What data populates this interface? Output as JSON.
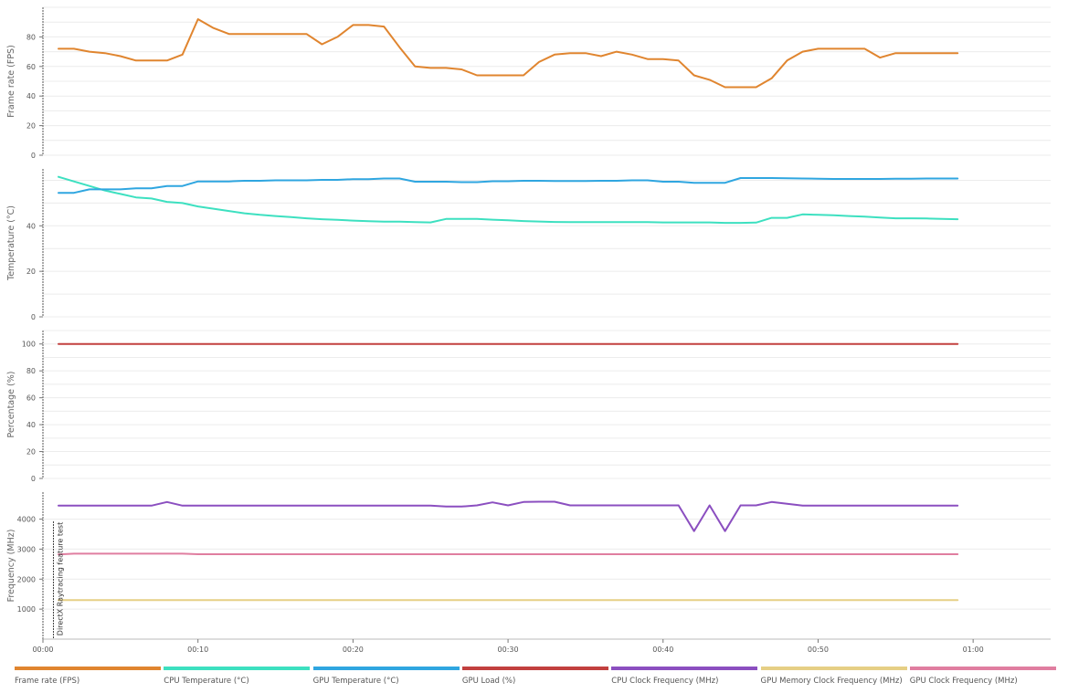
{
  "chart_data": {
    "type": "line",
    "x_axis": {
      "ticks": [
        "00:00",
        "00:10",
        "00:20",
        "00:30",
        "00:40",
        "00:50",
        "01:00"
      ],
      "range_seconds": [
        0,
        65
      ]
    },
    "annotations": [
      {
        "label": "DirectX Raytracing feature test",
        "x_seconds": 0.5
      }
    ],
    "panels": [
      {
        "ylabel": "Frame rate (FPS)",
        "ylim": [
          0,
          100
        ],
        "ticks": [
          0,
          20,
          40,
          60,
          80
        ],
        "grid_step": 10,
        "series": [
          {
            "name": "Frame rate (FPS)",
            "color": "#e0852f",
            "t": [
              1,
              2,
              3,
              4,
              5,
              6,
              7,
              8,
              9,
              10,
              11,
              12,
              13,
              14,
              15,
              16,
              17,
              18,
              19,
              20,
              21,
              22,
              23,
              24,
              25,
              26,
              27,
              28,
              29,
              30,
              31,
              32,
              33,
              34,
              35,
              36,
              37,
              38,
              39,
              40,
              41,
              42,
              43,
              44,
              45,
              46,
              47,
              48,
              49,
              50,
              51,
              52,
              53,
              54,
              55,
              56,
              57,
              58,
              59
            ],
            "values": [
              72,
              72,
              70,
              69,
              67,
              64,
              64,
              64,
              68,
              92,
              86,
              82,
              82,
              82,
              82,
              82,
              82,
              75,
              80,
              88,
              88,
              87,
              73,
              60,
              59,
              59,
              58,
              54,
              54,
              54,
              54,
              63,
              68,
              69,
              69,
              67,
              70,
              68,
              65,
              65,
              64,
              54,
              51,
              46,
              46,
              46,
              52,
              64,
              70,
              72,
              72,
              72,
              72,
              66,
              69,
              69,
              69,
              69,
              69
            ]
          }
        ]
      },
      {
        "ylabel": "Temperature (°C)",
        "ylim": [
          0,
          65
        ],
        "ticks": [
          0,
          20,
          40
        ],
        "grid_step": 10,
        "series": [
          {
            "name": "CPU Temperature (°C)",
            "color": "#3de0c0",
            "t": [
              1,
              2,
              3,
              4,
              5,
              6,
              7,
              8,
              9,
              10,
              11,
              12,
              13,
              14,
              15,
              16,
              17,
              18,
              19,
              20,
              21,
              22,
              23,
              24,
              25,
              26,
              27,
              28,
              29,
              30,
              31,
              32,
              33,
              34,
              35,
              36,
              37,
              38,
              39,
              40,
              41,
              42,
              43,
              44,
              45,
              46,
              47,
              48,
              49,
              50,
              51,
              52,
              53,
              54,
              55,
              56,
              57,
              58,
              59
            ],
            "values": [
              61.5,
              59.5,
              57.5,
              55.5,
              54,
              52.5,
              52,
              50.5,
              50,
              48.5,
              47.5,
              46.5,
              45.5,
              44.8,
              44.3,
              43.8,
              43.3,
              42.9,
              42.6,
              42.3,
              42,
              41.8,
              41.8,
              41.6,
              41.5,
              43,
              43,
              43,
              42.7,
              42.4,
              42.1,
              41.9,
              41.7,
              41.6,
              41.6,
              41.6,
              41.6,
              41.6,
              41.6,
              41.5,
              41.5,
              41.5,
              41.5,
              41.3,
              41.3,
              41.4,
              43.5,
              43.5,
              45,
              44.8,
              44.6,
              44.3,
              44,
              43.6,
              43.3,
              43.3,
              43.2,
              43,
              42.9
            ]
          },
          {
            "name": "GPU Temperature (°C)",
            "color": "#2fa6e0",
            "t": [
              1,
              2,
              3,
              4,
              5,
              6,
              7,
              8,
              9,
              10,
              11,
              12,
              13,
              14,
              15,
              16,
              17,
              18,
              19,
              20,
              21,
              22,
              23,
              24,
              25,
              26,
              27,
              28,
              29,
              30,
              31,
              32,
              33,
              34,
              35,
              36,
              37,
              38,
              39,
              40,
              41,
              42,
              43,
              44,
              45,
              46,
              47,
              48,
              49,
              50,
              51,
              52,
              53,
              54,
              55,
              56,
              57,
              58,
              59
            ],
            "values": [
              54.5,
              54.5,
              56,
              56,
              56,
              56.5,
              56.5,
              57.5,
              57.5,
              59.5,
              59.5,
              59.5,
              59.8,
              59.8,
              60,
              60,
              60,
              60.2,
              60.2,
              60.5,
              60.5,
              60.8,
              60.8,
              59.4,
              59.4,
              59.4,
              59.2,
              59.2,
              59.6,
              59.6,
              59.8,
              59.8,
              59.7,
              59.7,
              59.7,
              59.8,
              59.8,
              60,
              60,
              59.4,
              59.4,
              58.9,
              58.9,
              58.9,
              61,
              61,
              61,
              60.9,
              60.8,
              60.7,
              60.6,
              60.6,
              60.6,
              60.6,
              60.7,
              60.7,
              60.8,
              60.8,
              60.8
            ]
          }
        ]
      },
      {
        "ylabel": "Percentage (%)",
        "ylim": [
          0,
          110
        ],
        "ticks": [
          0,
          20,
          40,
          60,
          80,
          100
        ],
        "grid_step": 10,
        "series": [
          {
            "name": "GPU Load (%)",
            "color": "#c2403f",
            "t": [
              1,
              59
            ],
            "values": [
              100,
              100
            ]
          }
        ]
      },
      {
        "ylabel": "Frequency (MHz)",
        "ylim": [
          0,
          4900
        ],
        "ticks": [
          1000,
          2000,
          3000,
          4000
        ],
        "grid_step": 1000,
        "series": [
          {
            "name": "CPU Clock Frequency (MHz)",
            "color": "#8b4fc0",
            "t": [
              1,
              7,
              8,
              9,
              10,
              25,
              26,
              27,
              28,
              29,
              30,
              31,
              32,
              33,
              34,
              35,
              41,
              42,
              43,
              44,
              45,
              46,
              47,
              48,
              49,
              50,
              59
            ],
            "values": [
              4450,
              4450,
              4570,
              4450,
              4450,
              4450,
              4420,
              4420,
              4460,
              4560,
              4460,
              4570,
              4580,
              4580,
              4460,
              4460,
              4460,
              3600,
              4460,
              3600,
              4460,
              4460,
              4570,
              4510,
              4450,
              4450,
              4450
            ]
          },
          {
            "name": "GPU Memory Clock Frequency (MHz)",
            "color": "#e6cf85",
            "t": [
              1,
              59
            ],
            "values": [
              1300,
              1300
            ]
          },
          {
            "name": "GPU Clock Frequency (MHz)",
            "color": "#e07ea0",
            "t": [
              1,
              2,
              9,
              10,
              59
            ],
            "values": [
              2820,
              2850,
              2850,
              2830,
              2830
            ]
          }
        ]
      }
    ],
    "legend": [
      {
        "name": "Frame rate (FPS)",
        "color": "#e0852f"
      },
      {
        "name": "CPU Temperature (°C)",
        "color": "#3de0c0"
      },
      {
        "name": "GPU Temperature (°C)",
        "color": "#2fa6e0"
      },
      {
        "name": "GPU Load (%)",
        "color": "#c2403f"
      },
      {
        "name": "CPU Clock Frequency (MHz)",
        "color": "#8b4fc0"
      },
      {
        "name": "GPU Memory Clock Frequency (MHz)",
        "color": "#e6cf85"
      },
      {
        "name": "GPU Clock Frequency (MHz)",
        "color": "#e07ea0"
      }
    ]
  }
}
